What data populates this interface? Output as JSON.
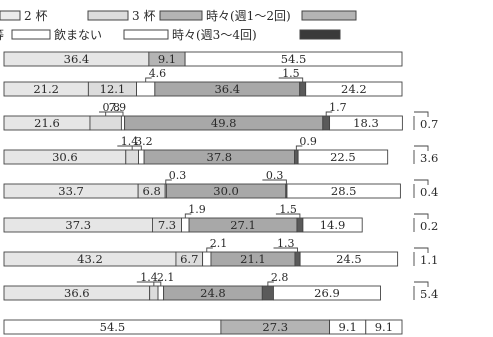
{
  "chart_data": {
    "type": "bar",
    "orientation": "horizontal",
    "stacked": true,
    "unit": "%",
    "xlim": [
      0,
      100
    ],
    "title": "",
    "xlabel": "",
    "ylabel": "",
    "grid": false,
    "legend": {
      "placement": "top",
      "entries": [
        {
          "label": "2 杯",
          "color": "#ececec"
        },
        {
          "label": "3 杯",
          "color": "#dcdcdc"
        },
        {
          "label": "時々(週1～2回)",
          "color": "#b4b4b4"
        },
        {
          "label": "",
          "color": "#b4b4b4"
        },
        {
          "label": "飲まない",
          "color": "#ffffff"
        },
        {
          "label": "時々(週3～4回)",
          "color": "#ffffff"
        },
        {
          "label": "",
          "color": "#3a3a3a"
        }
      ]
    },
    "rows": [
      {
        "segments": [
          {
            "value": 36.4,
            "color": "#e6e6e6",
            "label": "36.4"
          },
          {
            "value": 9.1,
            "color": "#b4b4b4",
            "label": "9.1"
          },
          {
            "value": 54.5,
            "color": "#ffffff",
            "label": "54.5"
          }
        ]
      },
      {
        "segments": [
          {
            "value": 21.2,
            "color": "#e6e6e6",
            "label": "21.2"
          },
          {
            "value": 12.1,
            "color": "#dcdcdc",
            "label": "12.1"
          },
          {
            "value": 4.6,
            "color": "#ffffff",
            "label": "4.6",
            "callout": true
          },
          {
            "value": 36.4,
            "color": "#a8a8a8",
            "label": "36.4"
          },
          {
            "value": 1.5,
            "color": "#5a5a5a",
            "label": "1.5",
            "callout": true
          },
          {
            "value": 24.2,
            "color": "#ffffff",
            "label": "24.2"
          }
        ]
      },
      {
        "segments": [
          {
            "value": 21.6,
            "color": "#e6e6e6",
            "label": "21.6"
          },
          {
            "value": 7.9,
            "color": "#dcdcdc",
            "label": "7.9",
            "callout": true
          },
          {
            "value": 0.8,
            "color": "#ffffff",
            "label": "0.8",
            "callout": true
          },
          {
            "value": 49.8,
            "color": "#a8a8a8",
            "label": "49.8"
          },
          {
            "value": 1.7,
            "color": "#5a5a5a",
            "label": "1.7",
            "callout": true
          },
          {
            "value": 18.3,
            "color": "#ffffff",
            "label": "18.3"
          },
          {
            "value": 0.7,
            "color": "#ffffff",
            "label": "0.7",
            "callout": true
          }
        ]
      },
      {
        "segments": [
          {
            "value": 30.6,
            "color": "#e6e6e6",
            "label": "30.6"
          },
          {
            "value": 3.2,
            "color": "#dcdcdc",
            "label": "3.2",
            "callout": true
          },
          {
            "value": 1.4,
            "color": "#ffffff",
            "label": "1.4",
            "callout": true
          },
          {
            "value": 37.8,
            "color": "#a8a8a8",
            "label": "37.8"
          },
          {
            "value": 0.9,
            "color": "#5a5a5a",
            "label": "0.9",
            "callout": true
          },
          {
            "value": 22.5,
            "color": "#ffffff",
            "label": "22.5"
          },
          {
            "value": 3.6,
            "color": "#ffffff",
            "label": "3.6",
            "callout": true
          }
        ]
      },
      {
        "segments": [
          {
            "value": 33.7,
            "color": "#e6e6e6",
            "label": "33.7"
          },
          {
            "value": 6.8,
            "color": "#dcdcdc",
            "label": "6.8"
          },
          {
            "value": 0.3,
            "color": "#ffffff",
            "label": "0.3",
            "callout": true
          },
          {
            "value": 30.0,
            "color": "#a8a8a8",
            "label": "30.0"
          },
          {
            "value": 0.3,
            "color": "#5a5a5a",
            "label": "0.3",
            "callout": true
          },
          {
            "value": 28.5,
            "color": "#ffffff",
            "label": "28.5"
          },
          {
            "value": 0.4,
            "color": "#ffffff",
            "label": "0.4",
            "callout": true
          }
        ]
      },
      {
        "segments": [
          {
            "value": 37.3,
            "color": "#e6e6e6",
            "label": "37.3"
          },
          {
            "value": 7.3,
            "color": "#dcdcdc",
            "label": "7.3"
          },
          {
            "value": 1.9,
            "color": "#ffffff",
            "label": "1.9",
            "callout": true
          },
          {
            "value": 27.1,
            "color": "#a8a8a8",
            "label": "27.1"
          },
          {
            "value": 1.5,
            "color": "#5a5a5a",
            "label": "1.5",
            "callout": true
          },
          {
            "value": 14.9,
            "color": "#ffffff",
            "label": "14.9"
          },
          {
            "value": 0.2,
            "color": "#ffffff",
            "label": "0.2",
            "callout": true
          }
        ]
      },
      {
        "segments": [
          {
            "value": 43.2,
            "color": "#e6e6e6",
            "label": "43.2"
          },
          {
            "value": 6.7,
            "color": "#dcdcdc",
            "label": "6.7"
          },
          {
            "value": 2.1,
            "color": "#ffffff",
            "label": "2.1",
            "callout": true
          },
          {
            "value": 21.1,
            "color": "#a8a8a8",
            "label": "21.1"
          },
          {
            "value": 1.3,
            "color": "#5a5a5a",
            "label": "1.3",
            "callout": true
          },
          {
            "value": 24.5,
            "color": "#ffffff",
            "label": "24.5"
          },
          {
            "value": 1.1,
            "color": "#ffffff",
            "label": "1.1",
            "callout": true
          }
        ]
      },
      {
        "segments": [
          {
            "value": 36.6,
            "color": "#e6e6e6",
            "label": "36.6"
          },
          {
            "value": 2.1,
            "color": "#dcdcdc",
            "label": "2.1",
            "callout": true
          },
          {
            "value": 1.4,
            "color": "#ffffff",
            "label": "1.4",
            "callout": true
          },
          {
            "value": 24.8,
            "color": "#a8a8a8",
            "label": "24.8"
          },
          {
            "value": 2.8,
            "color": "#5a5a5a",
            "label": "2.8",
            "callout": true
          },
          {
            "value": 26.9,
            "color": "#ffffff",
            "label": "26.9"
          },
          {
            "value": 5.4,
            "color": "#ffffff",
            "label": "5.4",
            "callout": true
          }
        ]
      },
      {
        "segments": [
          {
            "value": 54.5,
            "color": "#ffffff",
            "label": "54.5"
          },
          {
            "value": 27.3,
            "color": "#b4b4b4",
            "label": "27.3"
          },
          {
            "value": 9.1,
            "color": "#ffffff",
            "label": "9.1"
          },
          {
            "value": 9.1,
            "color": "#ffffff",
            "label": "9.1"
          }
        ]
      }
    ]
  }
}
